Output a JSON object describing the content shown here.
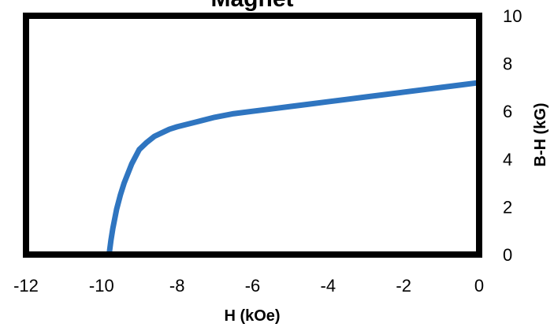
{
  "chart_data": {
    "type": "line",
    "title": "Magnet",
    "xlabel": "H (kOe)",
    "ylabel": "B-H (kG)",
    "xlim": [
      -12,
      0
    ],
    "ylim": [
      0,
      10
    ],
    "x_ticks": [
      "-12",
      "-10",
      "-8",
      "-6",
      "-4",
      "-2",
      "0"
    ],
    "y_ticks": [
      "0",
      "2",
      "4",
      "6",
      "8",
      "10"
    ],
    "y_axis_position": "right",
    "grid": false,
    "legend": "none",
    "series": [
      {
        "color": "#2f75c0",
        "x": [
          -9.8,
          -9.75,
          -9.7,
          -9.6,
          -9.5,
          -9.4,
          -9.3,
          -9.2,
          -9.1,
          -9.0,
          -8.8,
          -8.6,
          -8.4,
          -8.2,
          -8.0,
          -7.5,
          -7.0,
          -6.5,
          -6.0,
          -5.5,
          -5.0,
          -4.5,
          -4.0,
          -3.5,
          -3.0,
          -2.5,
          -2.0,
          -1.5,
          -1.0,
          -0.5,
          0.0
        ],
        "y": [
          0.0,
          0.6,
          1.1,
          1.9,
          2.5,
          3.0,
          3.4,
          3.8,
          4.1,
          4.4,
          4.7,
          4.95,
          5.1,
          5.25,
          5.35,
          5.55,
          5.75,
          5.9,
          6.0,
          6.1,
          6.2,
          6.3,
          6.4,
          6.5,
          6.6,
          6.7,
          6.8,
          6.9,
          7.0,
          7.1,
          7.2
        ]
      }
    ]
  }
}
